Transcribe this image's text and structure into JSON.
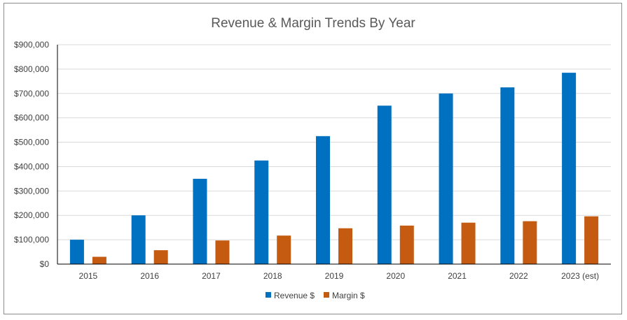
{
  "chart_data": {
    "type": "bar",
    "title": "Revenue & Margin Trends By Year",
    "xlabel": "",
    "ylabel": "",
    "categories": [
      "2015",
      "2016",
      "2017",
      "2018",
      "2019",
      "2020",
      "2021",
      "2022",
      "2023 (est)"
    ],
    "series": [
      {
        "name": "Revenue $",
        "color": "#0070C0",
        "values": [
          100000,
          200000,
          350000,
          425000,
          525000,
          650000,
          700000,
          725000,
          785000
        ]
      },
      {
        "name": "Margin $",
        "color": "#C55A11",
        "values": [
          30000,
          57000,
          97000,
          117000,
          147000,
          158000,
          170000,
          176000,
          196000
        ]
      }
    ],
    "ylim": [
      0,
      900000
    ],
    "yticks": [
      0,
      100000,
      200000,
      300000,
      400000,
      500000,
      600000,
      700000,
      800000,
      900000
    ],
    "ytick_labels": [
      "$0",
      "$100,000",
      "$200,000",
      "$300,000",
      "$400,000",
      "$500,000",
      "$600,000",
      "$700,000",
      "$800,000",
      "$900,000"
    ],
    "grid": true,
    "legend_position": "bottom"
  }
}
